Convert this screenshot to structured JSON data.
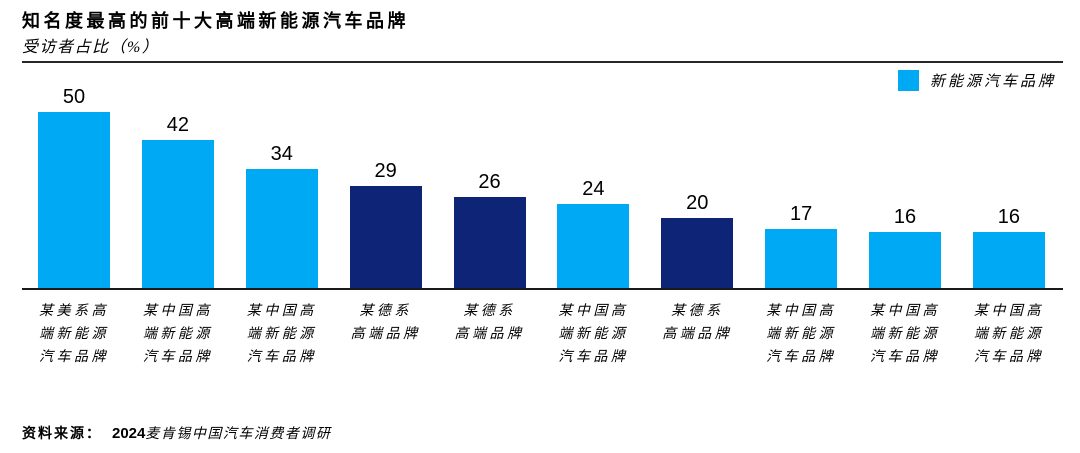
{
  "header": {
    "title": "知名度最高的前十大高端新能源汽车品牌",
    "subtitle": "受访者占比（%）"
  },
  "legend": {
    "label": "新能源汽车品牌",
    "color": "#00A9F4"
  },
  "source": {
    "label": "资料来源：",
    "year": "2024",
    "text": "麦肯锡中国汽车消费者调研"
  },
  "chart_data": {
    "type": "bar",
    "title": "知名度最高的前十大高端新能源汽车品牌",
    "ylabel": "受访者占比（%）",
    "xlabel": "",
    "ylim": [
      0,
      50
    ],
    "grid": false,
    "legend_position": "top-right",
    "legend_entries": [
      {
        "label": "新能源汽车品牌",
        "color": "#00A9F4"
      }
    ],
    "categories": [
      "某美系高端新能源汽车品牌",
      "某中国高端新能源汽车品牌",
      "某中国高端新能源汽车品牌",
      "某德系高端品牌",
      "某德系高端品牌",
      "某中国高端新能源汽车品牌",
      "某德系高端品牌",
      "某中国高端新能源汽车品牌",
      "某中国高端新能源汽车品牌",
      "某中国高端新能源汽车品牌"
    ],
    "category_display_lines": [
      [
        "某美系高",
        "端新能源",
        "汽车品牌"
      ],
      [
        "某中国高",
        "端新能源",
        "汽车品牌"
      ],
      [
        "某中国高",
        "端新能源",
        "汽车品牌"
      ],
      [
        "某德系",
        "高端品牌"
      ],
      [
        "某德系",
        "高端品牌"
      ],
      [
        "某中国高",
        "端新能源",
        "汽车品牌"
      ],
      [
        "某德系",
        "高端品牌"
      ],
      [
        "某中国高",
        "端新能源",
        "汽车品牌"
      ],
      [
        "某中国高",
        "端新能源",
        "汽车品牌"
      ],
      [
        "某中国高",
        "端新能源",
        "汽车品牌"
      ]
    ],
    "values": [
      50,
      42,
      34,
      29,
      26,
      24,
      20,
      17,
      16,
      16
    ],
    "bar_colors": [
      "#00A9F4",
      "#00A9F4",
      "#00A9F4",
      "#0D2477",
      "#0D2477",
      "#00A9F4",
      "#0D2477",
      "#00A9F4",
      "#00A9F4",
      "#00A9F4"
    ],
    "palette": {
      "light_blue": "#00A9F4",
      "dark_blue": "#0D2477",
      "axis": "#1a1a1a"
    }
  }
}
